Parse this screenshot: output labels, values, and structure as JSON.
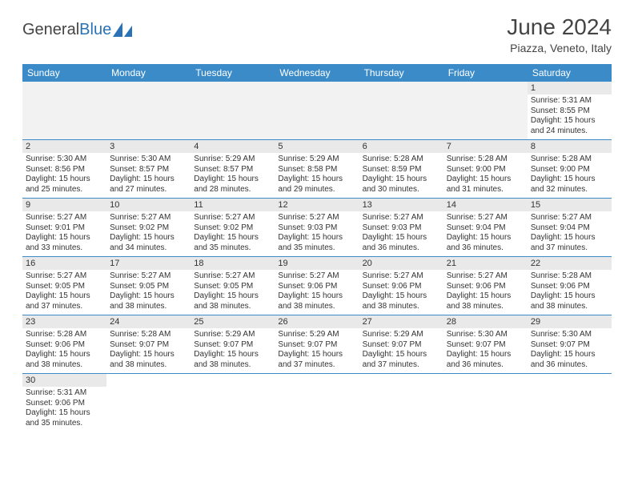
{
  "header": {
    "logo_general": "General",
    "logo_blue": "Blue",
    "month_title": "June 2024",
    "location": "Piazza, Veneto, Italy"
  },
  "colors": {
    "header_blue": "#3b8bc9",
    "logo_blue": "#2a72b5",
    "daynum_bg": "#e9e9e9",
    "empty_bg": "#f2f2f2"
  },
  "days_of_week": [
    "Sunday",
    "Monday",
    "Tuesday",
    "Wednesday",
    "Thursday",
    "Friday",
    "Saturday"
  ],
  "cells": {
    "d1": {
      "num": "1",
      "sunrise": "Sunrise: 5:31 AM",
      "sunset": "Sunset: 8:55 PM",
      "daylight1": "Daylight: 15 hours",
      "daylight2": "and 24 minutes."
    },
    "d2": {
      "num": "2",
      "sunrise": "Sunrise: 5:30 AM",
      "sunset": "Sunset: 8:56 PM",
      "daylight1": "Daylight: 15 hours",
      "daylight2": "and 25 minutes."
    },
    "d3": {
      "num": "3",
      "sunrise": "Sunrise: 5:30 AM",
      "sunset": "Sunset: 8:57 PM",
      "daylight1": "Daylight: 15 hours",
      "daylight2": "and 27 minutes."
    },
    "d4": {
      "num": "4",
      "sunrise": "Sunrise: 5:29 AM",
      "sunset": "Sunset: 8:57 PM",
      "daylight1": "Daylight: 15 hours",
      "daylight2": "and 28 minutes."
    },
    "d5": {
      "num": "5",
      "sunrise": "Sunrise: 5:29 AM",
      "sunset": "Sunset: 8:58 PM",
      "daylight1": "Daylight: 15 hours",
      "daylight2": "and 29 minutes."
    },
    "d6": {
      "num": "6",
      "sunrise": "Sunrise: 5:28 AM",
      "sunset": "Sunset: 8:59 PM",
      "daylight1": "Daylight: 15 hours",
      "daylight2": "and 30 minutes."
    },
    "d7": {
      "num": "7",
      "sunrise": "Sunrise: 5:28 AM",
      "sunset": "Sunset: 9:00 PM",
      "daylight1": "Daylight: 15 hours",
      "daylight2": "and 31 minutes."
    },
    "d8": {
      "num": "8",
      "sunrise": "Sunrise: 5:28 AM",
      "sunset": "Sunset: 9:00 PM",
      "daylight1": "Daylight: 15 hours",
      "daylight2": "and 32 minutes."
    },
    "d9": {
      "num": "9",
      "sunrise": "Sunrise: 5:27 AM",
      "sunset": "Sunset: 9:01 PM",
      "daylight1": "Daylight: 15 hours",
      "daylight2": "and 33 minutes."
    },
    "d10": {
      "num": "10",
      "sunrise": "Sunrise: 5:27 AM",
      "sunset": "Sunset: 9:02 PM",
      "daylight1": "Daylight: 15 hours",
      "daylight2": "and 34 minutes."
    },
    "d11": {
      "num": "11",
      "sunrise": "Sunrise: 5:27 AM",
      "sunset": "Sunset: 9:02 PM",
      "daylight1": "Daylight: 15 hours",
      "daylight2": "and 35 minutes."
    },
    "d12": {
      "num": "12",
      "sunrise": "Sunrise: 5:27 AM",
      "sunset": "Sunset: 9:03 PM",
      "daylight1": "Daylight: 15 hours",
      "daylight2": "and 35 minutes."
    },
    "d13": {
      "num": "13",
      "sunrise": "Sunrise: 5:27 AM",
      "sunset": "Sunset: 9:03 PM",
      "daylight1": "Daylight: 15 hours",
      "daylight2": "and 36 minutes."
    },
    "d14": {
      "num": "14",
      "sunrise": "Sunrise: 5:27 AM",
      "sunset": "Sunset: 9:04 PM",
      "daylight1": "Daylight: 15 hours",
      "daylight2": "and 36 minutes."
    },
    "d15": {
      "num": "15",
      "sunrise": "Sunrise: 5:27 AM",
      "sunset": "Sunset: 9:04 PM",
      "daylight1": "Daylight: 15 hours",
      "daylight2": "and 37 minutes."
    },
    "d16": {
      "num": "16",
      "sunrise": "Sunrise: 5:27 AM",
      "sunset": "Sunset: 9:05 PM",
      "daylight1": "Daylight: 15 hours",
      "daylight2": "and 37 minutes."
    },
    "d17": {
      "num": "17",
      "sunrise": "Sunrise: 5:27 AM",
      "sunset": "Sunset: 9:05 PM",
      "daylight1": "Daylight: 15 hours",
      "daylight2": "and 38 minutes."
    },
    "d18": {
      "num": "18",
      "sunrise": "Sunrise: 5:27 AM",
      "sunset": "Sunset: 9:05 PM",
      "daylight1": "Daylight: 15 hours",
      "daylight2": "and 38 minutes."
    },
    "d19": {
      "num": "19",
      "sunrise": "Sunrise: 5:27 AM",
      "sunset": "Sunset: 9:06 PM",
      "daylight1": "Daylight: 15 hours",
      "daylight2": "and 38 minutes."
    },
    "d20": {
      "num": "20",
      "sunrise": "Sunrise: 5:27 AM",
      "sunset": "Sunset: 9:06 PM",
      "daylight1": "Daylight: 15 hours",
      "daylight2": "and 38 minutes."
    },
    "d21": {
      "num": "21",
      "sunrise": "Sunrise: 5:27 AM",
      "sunset": "Sunset: 9:06 PM",
      "daylight1": "Daylight: 15 hours",
      "daylight2": "and 38 minutes."
    },
    "d22": {
      "num": "22",
      "sunrise": "Sunrise: 5:28 AM",
      "sunset": "Sunset: 9:06 PM",
      "daylight1": "Daylight: 15 hours",
      "daylight2": "and 38 minutes."
    },
    "d23": {
      "num": "23",
      "sunrise": "Sunrise: 5:28 AM",
      "sunset": "Sunset: 9:06 PM",
      "daylight1": "Daylight: 15 hours",
      "daylight2": "and 38 minutes."
    },
    "d24": {
      "num": "24",
      "sunrise": "Sunrise: 5:28 AM",
      "sunset": "Sunset: 9:07 PM",
      "daylight1": "Daylight: 15 hours",
      "daylight2": "and 38 minutes."
    },
    "d25": {
      "num": "25",
      "sunrise": "Sunrise: 5:29 AM",
      "sunset": "Sunset: 9:07 PM",
      "daylight1": "Daylight: 15 hours",
      "daylight2": "and 38 minutes."
    },
    "d26": {
      "num": "26",
      "sunrise": "Sunrise: 5:29 AM",
      "sunset": "Sunset: 9:07 PM",
      "daylight1": "Daylight: 15 hours",
      "daylight2": "and 37 minutes."
    },
    "d27": {
      "num": "27",
      "sunrise": "Sunrise: 5:29 AM",
      "sunset": "Sunset: 9:07 PM",
      "daylight1": "Daylight: 15 hours",
      "daylight2": "and 37 minutes."
    },
    "d28": {
      "num": "28",
      "sunrise": "Sunrise: 5:30 AM",
      "sunset": "Sunset: 9:07 PM",
      "daylight1": "Daylight: 15 hours",
      "daylight2": "and 36 minutes."
    },
    "d29": {
      "num": "29",
      "sunrise": "Sunrise: 5:30 AM",
      "sunset": "Sunset: 9:07 PM",
      "daylight1": "Daylight: 15 hours",
      "daylight2": "and 36 minutes."
    },
    "d30": {
      "num": "30",
      "sunrise": "Sunrise: 5:31 AM",
      "sunset": "Sunset: 9:06 PM",
      "daylight1": "Daylight: 15 hours",
      "daylight2": "and 35 minutes."
    }
  }
}
